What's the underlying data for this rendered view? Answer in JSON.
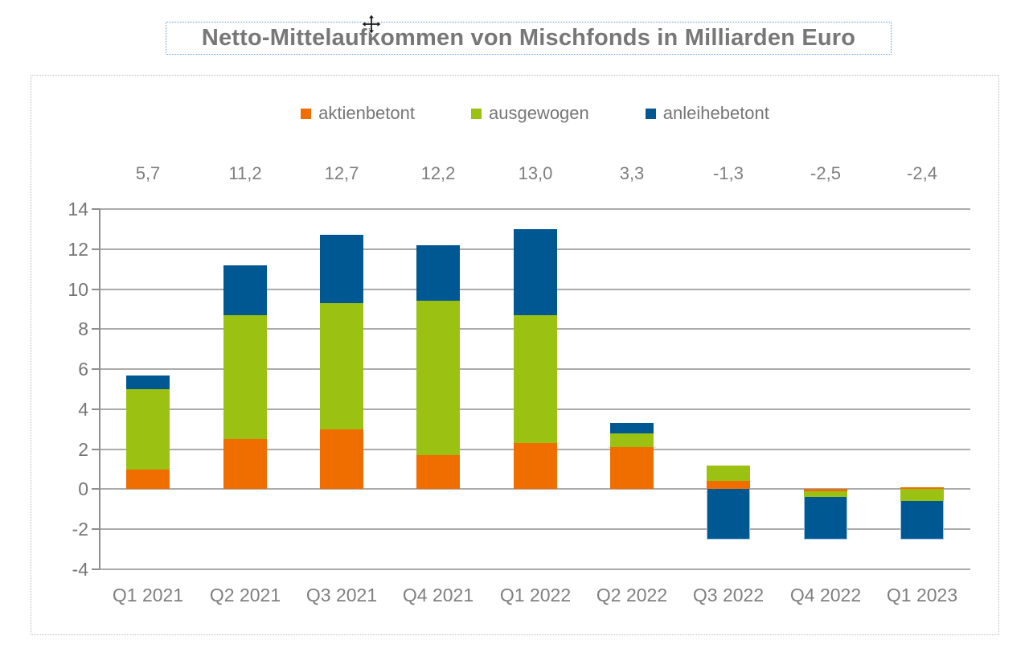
{
  "chart_data": {
    "type": "bar",
    "stacked": true,
    "title": "Netto-Mittelaufkommen von Mischfonds in Milliarden Euro",
    "categories": [
      "Q1 2021",
      "Q2 2021",
      "Q3 2021",
      "Q4 2021",
      "Q1 2022",
      "Q2 2022",
      "Q3 2022",
      "Q4 2022",
      "Q1 2023"
    ],
    "series": [
      {
        "name": "aktienbetont",
        "color": "#F06D00",
        "values": [
          1.0,
          2.5,
          3.0,
          1.7,
          2.3,
          2.1,
          0.4,
          -0.1,
          0.1
        ]
      },
      {
        "name": "ausgewogen",
        "color": "#9BC213",
        "values": [
          4.0,
          6.2,
          6.3,
          7.7,
          6.4,
          0.7,
          0.8,
          -0.3,
          -0.6
        ]
      },
      {
        "name": "anleihebetont",
        "color": "#005893",
        "values": [
          0.7,
          2.5,
          3.4,
          2.8,
          4.3,
          0.5,
          -2.5,
          -2.1,
          -1.9
        ]
      }
    ],
    "totals": [
      "5,7",
      "11,2",
      "12,7",
      "12,2",
      "13,0",
      "3,3",
      "-1,3",
      "-2,5",
      "-2,4"
    ],
    "y_tick_labels": [
      "14",
      "12",
      "10",
      "8",
      "6",
      "4",
      "2",
      "0",
      "-2",
      "-4"
    ],
    "y_ticks": [
      14,
      12,
      10,
      8,
      6,
      4,
      2,
      0,
      -2,
      -4
    ],
    "ylim": [
      -4,
      14
    ],
    "grid": true,
    "legend_position": "top",
    "value_unit": "Milliarden Euro"
  },
  "selection": {
    "title_border_color": "#5B9BD5",
    "frame_border_color": "#B8B8B8"
  },
  "cursor": {
    "type": "move"
  }
}
